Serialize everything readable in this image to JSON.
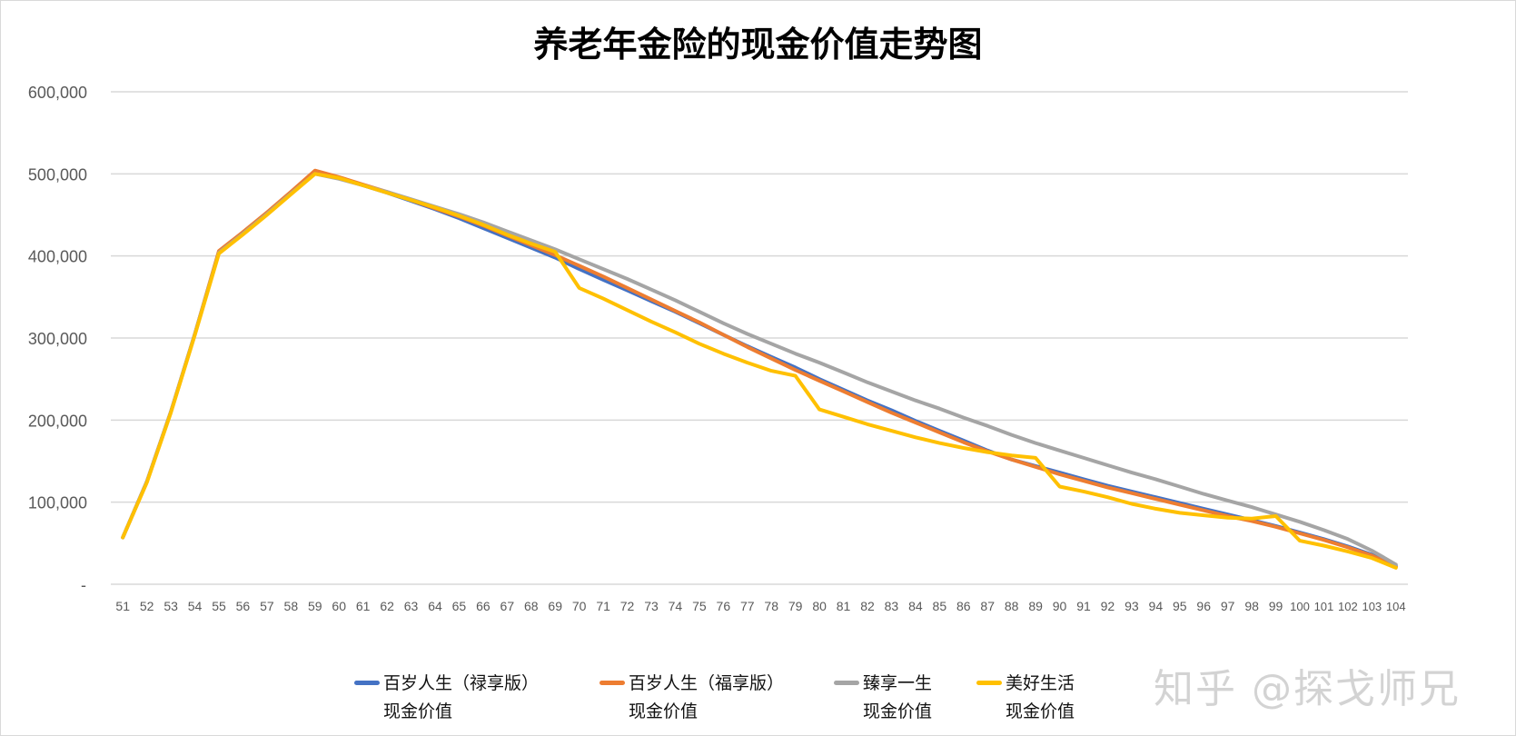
{
  "chart_data": {
    "type": "line",
    "title": "养老年金险的现金价值走势图",
    "xlabel": "",
    "ylabel": "",
    "ylim": [
      0,
      600000
    ],
    "yticks": [
      0,
      100000,
      200000,
      300000,
      400000,
      500000,
      600000
    ],
    "ytick_labels": [
      "-",
      "100,000",
      "200,000",
      "300,000",
      "400,000",
      "500,000",
      "600,000"
    ],
    "grid": true,
    "legend_position": "bottom",
    "x": [
      51,
      52,
      53,
      54,
      55,
      56,
      57,
      58,
      59,
      60,
      61,
      62,
      63,
      64,
      65,
      66,
      67,
      68,
      69,
      70,
      71,
      72,
      73,
      74,
      75,
      76,
      77,
      78,
      79,
      80,
      81,
      82,
      83,
      84,
      85,
      86,
      87,
      88,
      89,
      90,
      91,
      92,
      93,
      94,
      95,
      96,
      97,
      98,
      99,
      100,
      101,
      102,
      103,
      104
    ],
    "series": [
      {
        "name": "百岁人生（禄享版）",
        "name2": "现金价值",
        "color": "#4472C4",
        "values": [
          57000,
          125000,
          210000,
          305000,
          405000,
          428000,
          452000,
          477000,
          503000,
          495000,
          486000,
          477000,
          467000,
          457000,
          446000,
          434000,
          422000,
          410000,
          398000,
          384000,
          371000,
          358000,
          345000,
          332000,
          318000,
          304000,
          290000,
          277000,
          264000,
          250000,
          237000,
          224000,
          212000,
          199000,
          187000,
          175000,
          163000,
          152000,
          144000,
          136000,
          128000,
          120000,
          113000,
          106000,
          99000,
          92000,
          85000,
          78000,
          71000,
          63000,
          55000,
          46000,
          36000,
          22000
        ]
      },
      {
        "name": "百岁人生（福享版）",
        "name2": "现金价值",
        "color": "#ED7D31",
        "values": [
          57000,
          125000,
          210000,
          305000,
          406000,
          429000,
          453000,
          478000,
          504000,
          496000,
          487000,
          478000,
          468000,
          458000,
          448000,
          437000,
          425000,
          413000,
          401000,
          388000,
          375000,
          361000,
          347000,
          333000,
          319000,
          304000,
          289000,
          275000,
          261000,
          248000,
          235000,
          222000,
          209000,
          197000,
          185000,
          173000,
          162000,
          152000,
          143000,
          134000,
          126000,
          118000,
          111000,
          104000,
          97000,
          90000,
          83000,
          77000,
          70000,
          62000,
          54000,
          45000,
          35000,
          21000
        ]
      },
      {
        "name": "臻享一生",
        "name2": "现金价值",
        "color": "#A5A5A5",
        "values": [
          57000,
          125000,
          210000,
          305000,
          404000,
          427000,
          451000,
          476000,
          500000,
          494000,
          486000,
          478000,
          469000,
          460000,
          451000,
          441000,
          430000,
          419000,
          408000,
          396000,
          384000,
          372000,
          359000,
          346000,
          332000,
          318000,
          305000,
          293000,
          281000,
          270000,
          258000,
          246000,
          235000,
          224000,
          214000,
          203000,
          193000,
          182000,
          172000,
          163000,
          154000,
          145000,
          136000,
          128000,
          119000,
          110000,
          102000,
          94000,
          85000,
          76000,
          66000,
          55000,
          41000,
          24000
        ]
      },
      {
        "name": "美好生活",
        "name2": "现金价值",
        "color": "#FFC000",
        "values": [
          57000,
          124000,
          209000,
          304000,
          403000,
          426000,
          450000,
          475000,
          500000,
          495000,
          486000,
          477000,
          468000,
          459000,
          449000,
          438000,
          426000,
          415000,
          405000,
          361000,
          348000,
          334000,
          320000,
          307000,
          293000,
          281000,
          270000,
          260000,
          254000,
          213000,
          204000,
          195000,
          187000,
          179000,
          172000,
          166000,
          161000,
          157000,
          154000,
          119000,
          113000,
          106000,
          98000,
          92000,
          87000,
          84000,
          81000,
          80000,
          83000,
          53000,
          47000,
          40000,
          32000,
          20000
        ]
      }
    ]
  },
  "watermark": "知乎 @探戈师兄"
}
